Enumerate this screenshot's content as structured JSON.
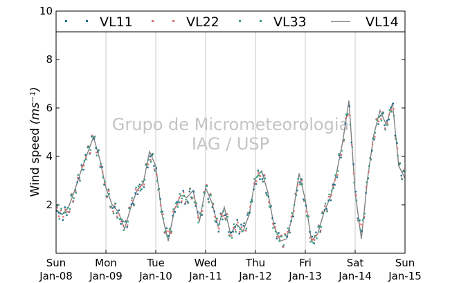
{
  "chart_data": {
    "type": "scatter",
    "ylabel": "Wind speed",
    "ylabel_unit": "(ms⁻¹)",
    "ylim": [
      0,
      10
    ],
    "xlim": [
      "2012-01-08",
      "2012-01-15"
    ],
    "y_ticks": [
      2,
      4,
      6,
      8,
      10
    ],
    "x_ticks": [
      {
        "date": "2012-01-08",
        "day": "Sun",
        "label": "Jan-08"
      },
      {
        "date": "2012-01-09",
        "day": "Mon",
        "label": "Jan-09"
      },
      {
        "date": "2012-01-10",
        "day": "Tue",
        "label": "Jan-10"
      },
      {
        "date": "2012-01-11",
        "day": "Wed",
        "label": "Jan-11"
      },
      {
        "date": "2012-01-12",
        "day": "Thu",
        "label": "Jan-12"
      },
      {
        "date": "2012-01-13",
        "day": "Fri",
        "label": "Jan-13"
      },
      {
        "date": "2012-01-14",
        "day": "Sat",
        "label": "Jan-14"
      },
      {
        "date": "2012-01-15",
        "day": "Sun",
        "label": "Jan-15"
      }
    ],
    "grid": "vertical",
    "legend_placement": "top",
    "watermark": [
      "Grupo de Micrometeorologia",
      "IAG / USP"
    ],
    "series": [
      {
        "name": "VL11",
        "style": "points",
        "color": "#1f6f8b"
      },
      {
        "name": "VL22",
        "style": "points",
        "color": "#e07070"
      },
      {
        "name": "VL33",
        "style": "points",
        "color": "#3aa080"
      },
      {
        "name": "VL14",
        "style": "line",
        "color": "#808080",
        "x": [
          "2012-01-08T00:00",
          "2012-01-08T03:00",
          "2012-01-08T06:00",
          "2012-01-08T09:00",
          "2012-01-08T12:00",
          "2012-01-08T15:00",
          "2012-01-08T18:00",
          "2012-01-08T21:00",
          "2012-01-09T00:00",
          "2012-01-09T03:00",
          "2012-01-09T06:00",
          "2012-01-09T09:00",
          "2012-01-09T12:00",
          "2012-01-09T15:00",
          "2012-01-09T18:00",
          "2012-01-09T21:00",
          "2012-01-10T00:00",
          "2012-01-10T03:00",
          "2012-01-10T06:00",
          "2012-01-10T09:00",
          "2012-01-10T12:00",
          "2012-01-10T15:00",
          "2012-01-10T18:00",
          "2012-01-10T21:00",
          "2012-01-11T00:00",
          "2012-01-11T03:00",
          "2012-01-11T06:00",
          "2012-01-11T09:00",
          "2012-01-11T12:00",
          "2012-01-11T15:00",
          "2012-01-11T18:00",
          "2012-01-11T21:00",
          "2012-01-12T00:00",
          "2012-01-12T03:00",
          "2012-01-12T06:00",
          "2012-01-12T09:00",
          "2012-01-12T12:00",
          "2012-01-12T15:00",
          "2012-01-12T18:00",
          "2012-01-12T21:00",
          "2012-01-13T00:00",
          "2012-01-13T03:00",
          "2012-01-13T06:00",
          "2012-01-13T09:00",
          "2012-01-13T12:00",
          "2012-01-13T15:00",
          "2012-01-13T18:00",
          "2012-01-13T21:00",
          "2012-01-14T00:00",
          "2012-01-14T03:00",
          "2012-01-14T06:00",
          "2012-01-14T09:00",
          "2012-01-14T12:00",
          "2012-01-14T15:00",
          "2012-01-14T18:00",
          "2012-01-14T21:00",
          "2012-01-15T00:00"
        ],
        "y": [
          1.8,
          1.6,
          1.9,
          2.6,
          3.4,
          4.1,
          4.8,
          3.9,
          2.7,
          2.0,
          1.7,
          1.0,
          1.9,
          2.6,
          2.9,
          4.2,
          3.6,
          1.6,
          0.5,
          1.8,
          2.4,
          2.3,
          2.6,
          1.3,
          2.7,
          2.1,
          1.1,
          1.9,
          0.8,
          1.2,
          0.9,
          1.6,
          3.1,
          3.4,
          2.5,
          1.1,
          0.5,
          0.6,
          1.6,
          3.3,
          2.2,
          0.5,
          0.8,
          1.7,
          2.3,
          3.3,
          4.6,
          6.3,
          2.5,
          0.6,
          3.1,
          4.9,
          5.9,
          5.3,
          6.2,
          3.6,
          3.1
        ]
      }
    ]
  }
}
